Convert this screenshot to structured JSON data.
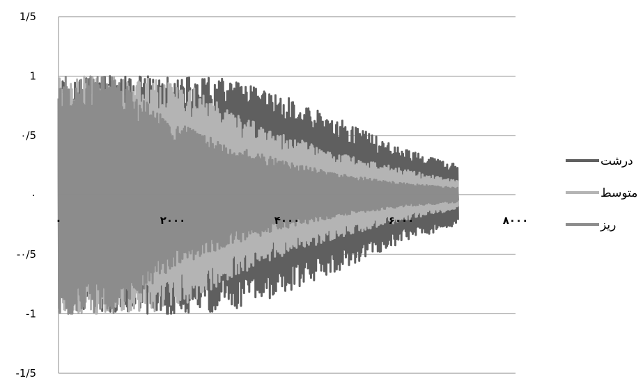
{
  "chart_data": {
    "type": "line",
    "xlim": [
      0,
      8000
    ],
    "ylim": [
      -1.5,
      1.5
    ],
    "grid": "horizontal",
    "legend_position": "right",
    "x_tick_labels": [
      "۰",
      "۲۰۰۰",
      "۴۰۰۰",
      "۶۰۰۰",
      "۸۰۰۰"
    ],
    "x_tick_values": [
      0,
      2000,
      4000,
      6000,
      8000
    ],
    "y_tick_labels": [
      "1/5",
      "1",
      "۰/5",
      "۰",
      "-۰/5",
      "-1",
      "-1/5"
    ],
    "y_tick_values": [
      1.5,
      1,
      0.5,
      0,
      -0.5,
      -1,
      -1.5
    ],
    "x_end": 7000,
    "series": [
      {
        "name": "درشت",
        "color": "#5f5f5f",
        "envelope": [
          {
            "x": 0,
            "amp": 1.0
          },
          {
            "x": 2000,
            "amp": 1.0
          },
          {
            "x": 3000,
            "amp": 0.98
          },
          {
            "x": 4000,
            "amp": 0.82
          },
          {
            "x": 5000,
            "amp": 0.62
          },
          {
            "x": 6000,
            "amp": 0.4
          },
          {
            "x": 7000,
            "amp": 0.25
          }
        ]
      },
      {
        "name": "متوسط",
        "color": "#b4b4b4",
        "envelope": [
          {
            "x": 0,
            "amp": 1.0
          },
          {
            "x": 1500,
            "amp": 1.0
          },
          {
            "x": 2500,
            "amp": 0.9
          },
          {
            "x": 3000,
            "amp": 0.7
          },
          {
            "x": 4000,
            "amp": 0.5
          },
          {
            "x": 5000,
            "amp": 0.35
          },
          {
            "x": 6000,
            "amp": 0.22
          },
          {
            "x": 7000,
            "amp": 0.12
          }
        ]
      },
      {
        "name": "ریز",
        "color": "#8c8c8c",
        "envelope": [
          {
            "x": 0,
            "amp": 1.0
          },
          {
            "x": 1000,
            "amp": 1.0
          },
          {
            "x": 2000,
            "amp": 0.62
          },
          {
            "x": 3000,
            "amp": 0.42
          },
          {
            "x": 4000,
            "amp": 0.28
          },
          {
            "x": 5000,
            "amp": 0.17
          },
          {
            "x": 6000,
            "amp": 0.1
          },
          {
            "x": 7000,
            "amp": 0.06
          }
        ]
      }
    ]
  }
}
